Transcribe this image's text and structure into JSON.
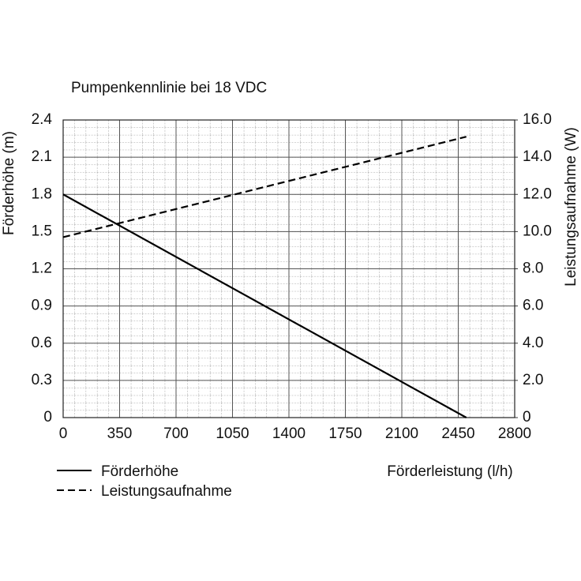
{
  "chart_data": {
    "type": "line",
    "title": "Pumpenkennlinie bei 18 VDC",
    "x_label": "Förderleistung (l/h)",
    "y_label": "Förderhöhe (m)",
    "y2_label": "Leistungsaufnahme (W)",
    "x": [
      0,
      2500
    ],
    "series": [
      {
        "name": "Förderhöhe",
        "color": "#000000",
        "dash": "solid",
        "values": [
          1.8,
          0
        ]
      },
      {
        "name": "Leistungsaufnahme",
        "color": "#000000",
        "dash": "dashed",
        "axis": "y2",
        "values": [
          9.7,
          15.1
        ]
      }
    ],
    "xlim": [
      0,
      2800
    ],
    "xticks": [
      0,
      350,
      700,
      1050,
      1400,
      1750,
      2100,
      2450,
      2800
    ],
    "ylim": [
      0,
      2.4
    ],
    "yticks": [
      0,
      0.3,
      0.6,
      0.9,
      1.2,
      1.5,
      1.8,
      2.1,
      2.4
    ],
    "y2lim": [
      0,
      16
    ],
    "y2ticks": [
      0,
      {
        "value": 2,
        "label": "2.0"
      },
      {
        "value": 4,
        "label": "4.0"
      },
      {
        "value": 6,
        "label": "6.0"
      },
      {
        "value": 8,
        "label": "8.0"
      },
      {
        "value": 10,
        "label": "10.0"
      },
      {
        "value": 12,
        "label": "12.0"
      },
      {
        "value": 14,
        "label": "14.0"
      },
      {
        "value": 16,
        "label": "16.0"
      }
    ],
    "grid": true
  }
}
